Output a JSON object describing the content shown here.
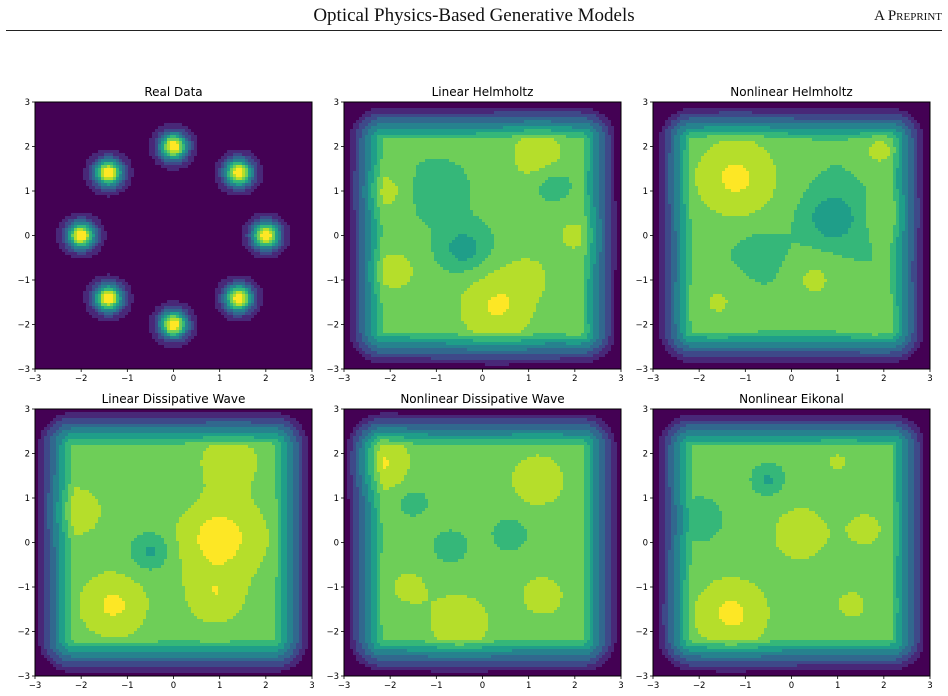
{
  "header": {
    "title": "Optical Physics-Based Generative Models",
    "running_head": "A Preprint"
  },
  "colors": {
    "viridis": [
      "#440154",
      "#482878",
      "#3e4989",
      "#31688e",
      "#26828e",
      "#1f9e89",
      "#35b779",
      "#6ece58",
      "#b5de2b",
      "#fde725"
    ]
  },
  "chart_data": [
    {
      "type": "heatmap",
      "title": "Real Data",
      "xlim": [
        -3,
        3
      ],
      "ylim": [
        -3,
        3
      ],
      "xticks": [
        "−3",
        "−2",
        "−1",
        "0",
        "1",
        "2",
        "3"
      ],
      "yticks": [
        "−3",
        "−2",
        "−1",
        "0",
        "1",
        "2",
        "3"
      ],
      "colormap": "viridis",
      "background_level": 0.5,
      "mixture_sigma": 0.22,
      "peaks": [
        {
          "x": 2.0,
          "y": 0.0,
          "amp": 9.5
        },
        {
          "x": 1.41,
          "y": 1.41,
          "amp": 9.5
        },
        {
          "x": 0.0,
          "y": 2.0,
          "amp": 9.5
        },
        {
          "x": -1.41,
          "y": 1.41,
          "amp": 9.5
        },
        {
          "x": -2.0,
          "y": 0.0,
          "amp": 9.5
        },
        {
          "x": -1.41,
          "y": -1.41,
          "amp": 9.5
        },
        {
          "x": 0.0,
          "y": -2.0,
          "amp": 9.5
        },
        {
          "x": 1.41,
          "y": -1.41,
          "amp": 9.5
        }
      ]
    },
    {
      "type": "heatmap",
      "title": "Linear Helmholtz",
      "xlim": [
        -3,
        3
      ],
      "ylim": [
        -3,
        3
      ],
      "xticks": [
        "−3",
        "−2",
        "−1",
        "0",
        "1",
        "2",
        "3"
      ],
      "yticks": [
        "−3",
        "−2",
        "−1",
        "0",
        "1",
        "2",
        "3"
      ],
      "colormap": "viridis",
      "base_level": 7.2,
      "peaks": [
        {
          "x": 1.2,
          "y": 1.8,
          "amp": 1.6,
          "s": 0.45
        },
        {
          "x": -2.1,
          "y": 1.0,
          "amp": 1.2,
          "s": 0.35
        },
        {
          "x": -1.9,
          "y": -0.8,
          "amp": 1.4,
          "s": 0.35
        },
        {
          "x": 0.3,
          "y": -1.6,
          "amp": 1.9,
          "s": 0.6
        },
        {
          "x": 1.0,
          "y": -0.9,
          "amp": 1.0,
          "s": 0.35
        },
        {
          "x": 2.0,
          "y": 0.0,
          "amp": 1.0,
          "s": 0.4
        },
        {
          "x": 2.0,
          "y": -2.2,
          "amp": 0.8,
          "s": 0.15
        },
        {
          "x": -0.4,
          "y": -0.3,
          "amp": -1.8,
          "s": 0.35
        },
        {
          "x": 1.5,
          "y": 1.2,
          "amp": -1.0,
          "s": 0.3
        },
        {
          "x": -1.0,
          "y": 1.0,
          "amp": -0.8,
          "s": 0.45
        }
      ]
    },
    {
      "type": "heatmap",
      "title": "Nonlinear Helmholtz",
      "xlim": [
        -3,
        3
      ],
      "ylim": [
        -3,
        3
      ],
      "xticks": [
        "−3",
        "−2",
        "−1",
        "0",
        "1",
        "2",
        "3"
      ],
      "yticks": [
        "−3",
        "−2",
        "−1",
        "0",
        "1",
        "2",
        "3"
      ],
      "colormap": "viridis",
      "base_level": 7.0,
      "peaks": [
        {
          "x": -1.2,
          "y": 1.3,
          "amp": 2.2,
          "s": 0.7
        },
        {
          "x": 1.9,
          "y": 1.9,
          "amp": 1.3,
          "s": 0.3
        },
        {
          "x": 0.5,
          "y": -1.0,
          "amp": 1.2,
          "s": 0.4
        },
        {
          "x": -1.6,
          "y": -1.5,
          "amp": 1.1,
          "s": 0.45
        },
        {
          "x": 1.8,
          "y": -1.9,
          "amp": 1.0,
          "s": 0.35
        },
        {
          "x": 2.1,
          "y": 0.5,
          "amp": 1.0,
          "s": 0.35
        },
        {
          "x": 0.9,
          "y": 0.4,
          "amp": -1.9,
          "s": 0.4
        },
        {
          "x": -0.7,
          "y": -0.4,
          "amp": -0.7,
          "s": 0.35
        }
      ]
    },
    {
      "type": "heatmap",
      "title": "Linear Dissipative Wave",
      "xlim": [
        -3,
        3
      ],
      "ylim": [
        -3,
        3
      ],
      "xticks": [
        "−3",
        "−2",
        "−1",
        "0",
        "1",
        "2",
        "3"
      ],
      "yticks": [
        "−3",
        "−2",
        "−1",
        "0",
        "1",
        "2",
        "3"
      ],
      "colormap": "viridis",
      "base_level": 7.6,
      "peaks": [
        {
          "x": 1.0,
          "y": 0.1,
          "amp": 1.9,
          "s": 0.6
        },
        {
          "x": -1.3,
          "y": -1.4,
          "amp": 1.6,
          "s": 0.45
        },
        {
          "x": 1.2,
          "y": 1.8,
          "amp": 1.2,
          "s": 0.4
        },
        {
          "x": -2.1,
          "y": 0.7,
          "amp": 1.2,
          "s": 0.35
        },
        {
          "x": 0.9,
          "y": -1.2,
          "amp": 1.2,
          "s": 0.4
        },
        {
          "x": -0.5,
          "y": -0.2,
          "amp": -1.8,
          "s": 0.3
        },
        {
          "x": -0.2,
          "y": 1.2,
          "amp": -0.6,
          "s": 0.4
        }
      ]
    },
    {
      "type": "heatmap",
      "title": "Nonlinear Dissipative Wave",
      "xlim": [
        -3,
        3
      ],
      "ylim": [
        -3,
        3
      ],
      "xticks": [
        "−3",
        "−2",
        "−1",
        "0",
        "1",
        "2",
        "3"
      ],
      "yticks": [
        "−3",
        "−2",
        "−1",
        "0",
        "1",
        "2",
        "3"
      ],
      "colormap": "viridis",
      "base_level": 7.3,
      "peaks": [
        {
          "x": -2.2,
          "y": 1.8,
          "amp": 1.8,
          "s": 0.45
        },
        {
          "x": 1.2,
          "y": 1.4,
          "amp": 1.5,
          "s": 0.45
        },
        {
          "x": -0.5,
          "y": -1.8,
          "amp": 1.5,
          "s": 0.5
        },
        {
          "x": 1.3,
          "y": -1.2,
          "amp": 1.2,
          "s": 0.4
        },
        {
          "x": -1.6,
          "y": -1.0,
          "amp": 1.0,
          "s": 0.35
        },
        {
          "x": -1.5,
          "y": 0.9,
          "amp": -1.0,
          "s": 0.2
        },
        {
          "x": -0.7,
          "y": -0.1,
          "amp": -0.9,
          "s": 0.25
        },
        {
          "x": 0.6,
          "y": 0.2,
          "amp": -0.7,
          "s": 0.3
        }
      ]
    },
    {
      "type": "heatmap",
      "title": "Nonlinear Eikonal",
      "xlim": [
        -3,
        3
      ],
      "ylim": [
        -3,
        3
      ],
      "xticks": [
        "−3",
        "−2",
        "−1",
        "0",
        "1",
        "2",
        "3"
      ],
      "yticks": [
        "−3",
        "−2",
        "−1",
        "0",
        "1",
        "2",
        "3"
      ],
      "colormap": "viridis",
      "base_level": 7.2,
      "peaks": [
        {
          "x": -1.3,
          "y": -1.6,
          "amp": 2.0,
          "s": 0.6
        },
        {
          "x": 0.2,
          "y": 0.2,
          "amp": 1.5,
          "s": 0.5
        },
        {
          "x": 1.6,
          "y": 0.3,
          "amp": 1.2,
          "s": 0.35
        },
        {
          "x": 1.0,
          "y": 1.8,
          "amp": 1.1,
          "s": 0.2
        },
        {
          "x": 1.3,
          "y": -1.4,
          "amp": 1.0,
          "s": 0.4
        },
        {
          "x": -0.5,
          "y": 1.4,
          "amp": -1.4,
          "s": 0.2
        },
        {
          "x": -2.0,
          "y": 0.5,
          "amp": -0.6,
          "s": 0.35
        }
      ]
    }
  ]
}
